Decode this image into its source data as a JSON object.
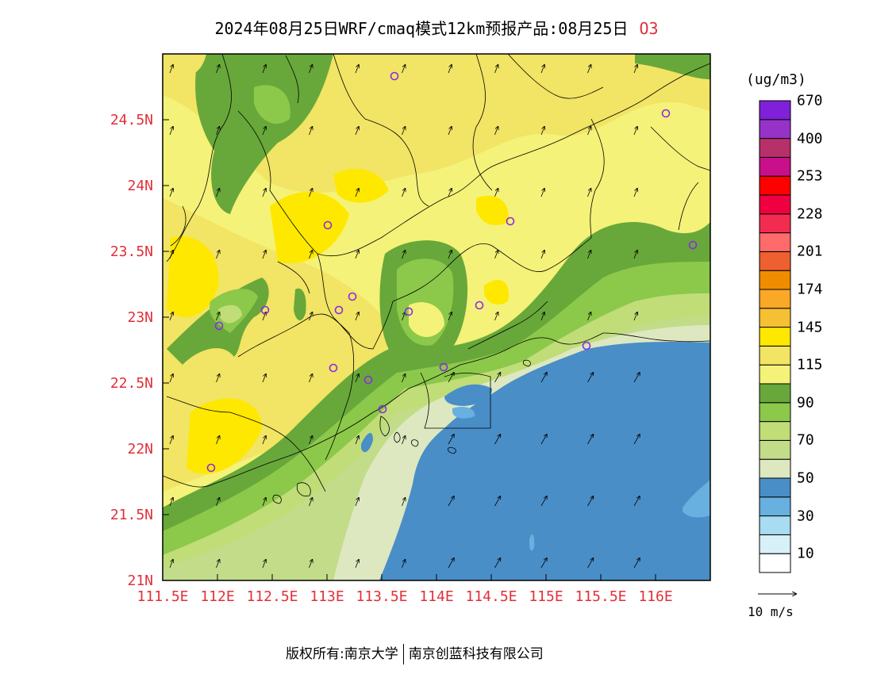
{
  "title": {
    "main": "2024年08月25日WRF/cmaq模式12km预报产品:08月25日",
    "species": "O3"
  },
  "axes": {
    "lat_labels": [
      "24.5N",
      "24N",
      "23.5N",
      "23N",
      "22.5N",
      "22N",
      "21.5N",
      "21N"
    ],
    "lat_values": [
      24.5,
      24.0,
      23.5,
      23.0,
      22.5,
      22.0,
      21.5,
      21.0
    ],
    "lon_labels": [
      "111.5E",
      "112E",
      "112.5E",
      "113E",
      "113.5E",
      "114E",
      "114.5E",
      "115E",
      "115.5E",
      "116E"
    ],
    "lon_values": [
      111.5,
      112.0,
      112.5,
      113.0,
      113.5,
      114.0,
      114.5,
      115.0,
      115.5,
      116.0
    ],
    "lon_range": [
      111.5,
      116.5
    ],
    "lat_range": [
      21.0,
      25.0
    ]
  },
  "legend": {
    "unit": "(ug/m3)",
    "colors": [
      "#ffffff",
      "#d8f0f8",
      "#a8dcf0",
      "#68b0e0",
      "#4a8ec8",
      "#dde8c0",
      "#c2dc8a",
      "#c0dd78",
      "#8cc84a",
      "#68a83a",
      "#f4f278",
      "#f2e464",
      "#ffe800",
      "#f6c034",
      "#f9a828",
      "#f08c00",
      "#ee6030",
      "#ff6a6a",
      "#f22c50",
      "#f00040",
      "#ff0000",
      "#c8108a",
      "#b8306a",
      "#9632c8",
      "#8020d8"
    ],
    "labels": [
      "10",
      "30",
      "50",
      "70",
      "90",
      "115",
      "145",
      "174",
      "201",
      "228",
      "253",
      "400",
      "670"
    ]
  },
  "wind_reference": "10 m/s",
  "copyright": {
    "left": "版权所有:南京大学",
    "right": "南京创蓝科技有限公司"
  }
}
